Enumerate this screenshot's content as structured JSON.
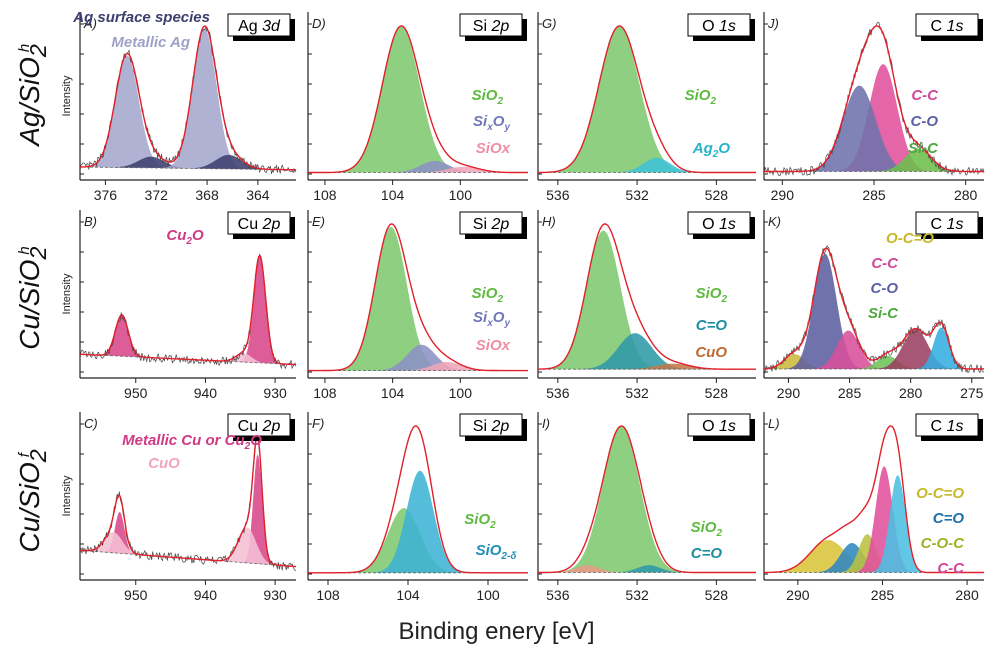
{
  "figure": {
    "xlabel": "Binding enery [eV]",
    "rows": [
      {
        "name": "Ag/SiO",
        "sup": "h",
        "sub": "2"
      },
      {
        "name": "Cu/SiO",
        "sup": "h",
        "sub": "2"
      },
      {
        "name": "Cu/SiO",
        "sup": "f",
        "sub": "2"
      }
    ]
  },
  "chart_data": [
    {
      "type": "area",
      "panel": "A)",
      "region": "Ag 3d",
      "ylabel": "Intensity",
      "xlim": [
        378,
        361
      ],
      "xticks": [
        376,
        372,
        368,
        364
      ],
      "components": [
        {
          "name": "Metallic Ag",
          "color": "#a4a7cc",
          "center": 374.3,
          "fwhm": 2.2,
          "height": 0.8
        },
        {
          "name": "Ag surface species",
          "color": "#3e3f6e",
          "center": 372.4,
          "fwhm": 2.4,
          "height": 0.08
        },
        {
          "name": "Metallic Ag",
          "color": "#a4a7cc",
          "center": 368.2,
          "fwhm": 2.2,
          "height": 1.0
        },
        {
          "name": "Ag surface species",
          "color": "#3e3f6e",
          "center": 366.3,
          "fwhm": 2.4,
          "height": 0.1
        }
      ],
      "baseline": {
        "left": 0.05,
        "right": 0.03
      },
      "noise": true,
      "labels": [
        {
          "text": "Ag surface species",
          "color": "#3d3f6e"
        },
        {
          "text": "Metallic Ag",
          "color": "#9fa2c8"
        }
      ]
    },
    {
      "type": "area",
      "panel": "D)",
      "region": "Si 2p",
      "xlim": [
        109,
        96
      ],
      "xticks": [
        108,
        104,
        100
      ],
      "components": [
        {
          "name": "SiO2",
          "color": "#7ec86f",
          "center": 103.5,
          "fwhm": 2.6,
          "height": 1.0
        },
        {
          "name": "SixOy",
          "color": "#8d92c4",
          "center": 101.5,
          "fwhm": 2.0,
          "height": 0.08
        },
        {
          "name": "SiOx",
          "color": "#f0a6b8",
          "center": 99.8,
          "fwhm": 2.2,
          "height": 0.04
        }
      ],
      "baseline": {
        "left": 0.01,
        "right": 0.01
      },
      "noise": false,
      "labels": [
        {
          "text": "SiO2",
          "color": "#5cbb3e"
        },
        {
          "text": "SixOy",
          "color": "#7178b9"
        },
        {
          "text": "SiOx",
          "color": "#ee8fa5"
        }
      ]
    },
    {
      "type": "area",
      "panel": "G)",
      "region": "O 1s",
      "xlim": [
        537,
        526
      ],
      "xticks": [
        536,
        532,
        528
      ],
      "components": [
        {
          "name": "SiO2",
          "color": "#7ec86f",
          "center": 532.9,
          "fwhm": 2.4,
          "height": 1.0
        },
        {
          "name": "Ag2O",
          "color": "#3ec3d6",
          "center": 531.0,
          "fwhm": 1.6,
          "height": 0.1
        }
      ],
      "baseline": {
        "left": 0.01,
        "right": 0.01
      },
      "noise": false,
      "labels": [
        {
          "text": "SiO2",
          "color": "#5cbb3e"
        },
        {
          "text": "Ag2O",
          "color": "#26b4c8"
        }
      ]
    },
    {
      "type": "area",
      "panel": "J)",
      "region": "C 1s",
      "xlim": [
        291,
        279
      ],
      "xticks": [
        290,
        285,
        280
      ],
      "components": [
        {
          "name": "C-C",
          "color": "#e0509c",
          "center": 284.5,
          "fwhm": 1.8,
          "height": 0.85
        },
        {
          "name": "C-O",
          "color": "#6e72ab",
          "center": 285.8,
          "fwhm": 2.1,
          "height": 0.68
        },
        {
          "name": "Si-C",
          "color": "#6cbf4a",
          "center": 282.6,
          "fwhm": 1.7,
          "height": 0.18
        }
      ],
      "baseline": {
        "left": 0.02,
        "right": 0.02
      },
      "noise": true,
      "labels": [
        {
          "text": "C-C",
          "color": "#d2489a"
        },
        {
          "text": "C-O",
          "color": "#5b5fa5"
        },
        {
          "text": "Si-C",
          "color": "#4ea83d"
        }
      ]
    },
    {
      "type": "area",
      "panel": "B)",
      "region": "Cu 2p",
      "ylabel": "Intensity",
      "xlim": [
        958,
        927
      ],
      "xticks": [
        950,
        940,
        930
      ],
      "components": [
        {
          "name": "Cu2O",
          "color": "#d8478a",
          "center": 952.0,
          "fwhm": 2.2,
          "height": 0.28
        },
        {
          "name": "Cu2O",
          "color": "#d8478a",
          "center": 932.2,
          "fwhm": 2.0,
          "height": 0.72
        },
        {
          "name": "Cu2O",
          "color": "#f4bfd4",
          "center": 934.5,
          "fwhm": 2.6,
          "height": 0.06
        }
      ],
      "baseline": {
        "left": 0.12,
        "right": 0.05
      },
      "noise": true,
      "labels": [
        {
          "text": "Cu2O",
          "color": "#d03a83"
        }
      ]
    },
    {
      "type": "area",
      "panel": "E)",
      "region": "Si 2p",
      "xlim": [
        109,
        96
      ],
      "xticks": [
        108,
        104,
        100
      ],
      "components": [
        {
          "name": "SiO2",
          "color": "#7ec86f",
          "center": 104.1,
          "fwhm": 2.2,
          "height": 1.0
        },
        {
          "name": "SixOy",
          "color": "#8d92c4",
          "center": 102.3,
          "fwhm": 2.0,
          "height": 0.18
        },
        {
          "name": "SiOx",
          "color": "#f0a6b8",
          "center": 100.8,
          "fwhm": 2.0,
          "height": 0.06
        }
      ],
      "baseline": {
        "left": 0.01,
        "right": 0.01
      },
      "noise": false,
      "labels": [
        {
          "text": "SiO2",
          "color": "#5cbb3e"
        },
        {
          "text": "SixOy",
          "color": "#7178b9"
        },
        {
          "text": "SiOx",
          "color": "#ee8fa5"
        }
      ]
    },
    {
      "type": "area",
      "panel": "H)",
      "region": "O 1s",
      "xlim": [
        537,
        526
      ],
      "xticks": [
        536,
        532,
        528
      ],
      "components": [
        {
          "name": "SiO2",
          "color": "#7ec86f",
          "center": 533.7,
          "fwhm": 2.0,
          "height": 1.0
        },
        {
          "name": "C=O",
          "color": "#2f9aa8",
          "center": 532.1,
          "fwhm": 2.0,
          "height": 0.26
        },
        {
          "name": "CuO",
          "color": "#c4794a",
          "center": 530.2,
          "fwhm": 2.0,
          "height": 0.04
        }
      ],
      "baseline": {
        "left": 0.02,
        "right": 0.02
      },
      "noise": false,
      "labels": [
        {
          "text": "SiO2",
          "color": "#5cbb3e"
        },
        {
          "text": "C=O",
          "color": "#1f8e9f"
        },
        {
          "text": "CuO",
          "color": "#bd6a35"
        }
      ]
    },
    {
      "type": "area",
      "panel": "K)",
      "region": "C 1s",
      "xlim": [
        292,
        274
      ],
      "xticks": [
        290,
        285,
        280,
        275
      ],
      "components": [
        {
          "name": "O-C=O",
          "color": "#c9bb3b",
          "center": 289.5,
          "fwhm": 2.0,
          "height": 0.1
        },
        {
          "name": "C-O",
          "color": "#5c5f9f",
          "center": 287.0,
          "fwhm": 2.2,
          "height": 0.78
        },
        {
          "name": "C-C",
          "color": "#d84f9b",
          "center": 285.1,
          "fwhm": 2.2,
          "height": 0.26
        },
        {
          "name": "Si-C",
          "color": "#6ec35a",
          "center": 281.9,
          "fwhm": 2.0,
          "height": 0.09
        },
        {
          "name": "C-C",
          "color": "#9b3f60",
          "center": 279.6,
          "fwhm": 2.4,
          "height": 0.27
        },
        {
          "name": "C-O",
          "color": "#36aee0",
          "center": 277.5,
          "fwhm": 1.5,
          "height": 0.28
        }
      ],
      "baseline": {
        "left": 0.02,
        "right": 0.02
      },
      "noise": true,
      "labels": [
        {
          "text": "O-C=O",
          "color": "#c7b82a"
        },
        {
          "text": "C-C",
          "color": "#d2489a"
        },
        {
          "text": "C-O",
          "color": "#5b5fa5"
        },
        {
          "text": "Si-C",
          "color": "#4ea83d"
        }
      ]
    },
    {
      "type": "area",
      "panel": "C)",
      "region": "Cu 2p",
      "ylabel": "Intensity",
      "xlim": [
        958,
        927
      ],
      "xticks": [
        950,
        940,
        930
      ],
      "components": [
        {
          "name": "Metallic Cu or Cu2O",
          "color": "#d8478a",
          "center": 952.3,
          "fwhm": 1.6,
          "height": 0.28
        },
        {
          "name": "CuO",
          "color": "#f4bfd4",
          "center": 953.2,
          "fwhm": 3.0,
          "height": 0.14
        },
        {
          "name": "Metallic Cu or Cu2O",
          "color": "#d8478a",
          "center": 932.5,
          "fwhm": 1.5,
          "height": 0.74
        },
        {
          "name": "CuO",
          "color": "#f4bfd4",
          "center": 934.0,
          "fwhm": 3.0,
          "height": 0.24
        }
      ],
      "baseline": {
        "left": 0.16,
        "right": 0.05
      },
      "noise": true,
      "labels": [
        {
          "text": "Metallic Cu or Cu2O",
          "color": "#d03a83"
        },
        {
          "text": "CuO",
          "color": "#f1a4c2"
        }
      ]
    },
    {
      "type": "area",
      "panel": "F)",
      "region": "Si 2p",
      "xlim": [
        109,
        98
      ],
      "xticks": [
        108,
        104,
        100
      ],
      "components": [
        {
          "name": "SiO2",
          "color": "#7ec86f",
          "center": 104.2,
          "fwhm": 1.9,
          "height": 0.52
        },
        {
          "name": "SiO2-δ",
          "color": "#3eb3d4",
          "center": 103.4,
          "fwhm": 1.6,
          "height": 0.82
        }
      ],
      "baseline": {
        "left": 0.01,
        "right": 0.01
      },
      "noise": false,
      "labels": [
        {
          "text": "SiO2",
          "color": "#5cbb3e"
        },
        {
          "text": "SiO2-δ",
          "color": "#1f8fb8"
        }
      ]
    },
    {
      "type": "area",
      "panel": "I)",
      "region": "O 1s",
      "xlim": [
        537,
        526
      ],
      "xticks": [
        536,
        532,
        528
      ],
      "components": [
        {
          "name": "SiO2",
          "color": "#7ec86f",
          "center": 532.8,
          "fwhm": 2.2,
          "height": 1.0
        },
        {
          "name": "C=O",
          "color": "#2f9aa8",
          "center": 531.4,
          "fwhm": 1.4,
          "height": 0.05
        },
        {
          "name": "SiO2",
          "color": "#e99a86",
          "center": 534.5,
          "fwhm": 1.4,
          "height": 0.05
        }
      ],
      "baseline": {
        "left": 0.01,
        "right": 0.01
      },
      "noise": false,
      "labels": [
        {
          "text": "SiO2",
          "color": "#5cbb3e"
        },
        {
          "text": "C=O",
          "color": "#1f8e9f"
        }
      ]
    },
    {
      "type": "area",
      "panel": "L)",
      "region": "C 1s",
      "xlim": [
        292,
        279
      ],
      "xticks": [
        290,
        285,
        280
      ],
      "components": [
        {
          "name": "O-C=O",
          "color": "#d8c43a",
          "center": 288.2,
          "fwhm": 2.5,
          "height": 0.22
        },
        {
          "name": "C=O",
          "color": "#2f86c0",
          "center": 286.8,
          "fwhm": 1.6,
          "height": 0.2
        },
        {
          "name": "C-O-C",
          "color": "#b9c13f",
          "center": 285.9,
          "fwhm": 1.2,
          "height": 0.26
        },
        {
          "name": "C-C",
          "color": "#e0509c",
          "center": 284.9,
          "fwhm": 1.2,
          "height": 0.72
        },
        {
          "name": "C-C",
          "color": "#4bbfe0",
          "center": 284.1,
          "fwhm": 1.1,
          "height": 0.66
        }
      ],
      "baseline": {
        "left": 0.01,
        "right": 0.01
      },
      "noise": false,
      "labels": [
        {
          "text": "O-C=O",
          "color": "#c7b82a"
        },
        {
          "text": "C=O",
          "color": "#1f6fa8"
        },
        {
          "text": "C-O-C",
          "color": "#9db326"
        },
        {
          "text": "C-C",
          "color": "#d2489a"
        }
      ]
    }
  ]
}
